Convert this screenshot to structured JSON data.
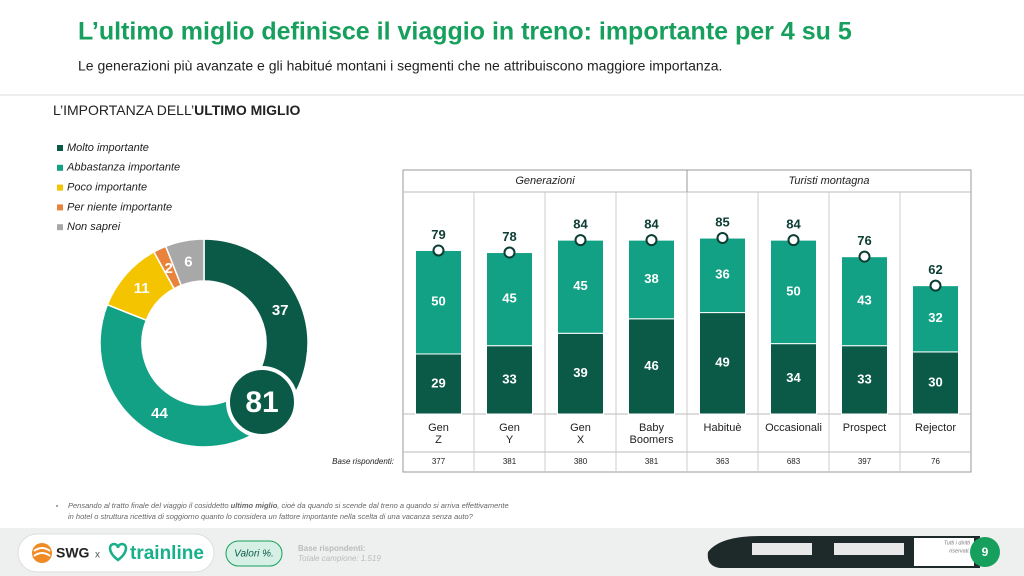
{
  "header": {
    "title": "L’ultimo miglio definisce il viaggio in treno: importante per 4 su 5",
    "subtitle": "Le generazioni più avanzate e gli habitué montani i segmenti che ne attribuiscono maggiore importanza."
  },
  "section": {
    "title_start": "L’IMPORTANZA DELL’",
    "title_bold": "ULTIMO MIGLIO"
  },
  "chart_data": [
    {
      "type": "pie",
      "categories": [
        "Molto importante",
        "Abbastanza importante",
        "Poco importante",
        "Per niente importante",
        "Non saprei"
      ],
      "values": [
        37,
        44,
        11,
        2,
        6
      ],
      "colors": [
        "#0b5a48",
        "#13a185",
        "#f5c400",
        "#e9823a",
        "#a8a8a8"
      ],
      "highlight": 81
    },
    {
      "type": "bar",
      "stacked": true,
      "groups": [
        {
          "label": "Generazioni",
          "span": 4
        },
        {
          "label": "Turisti montagna",
          "span": 4
        }
      ],
      "categories": [
        "Gen Z",
        "Gen Y",
        "Gen X",
        "Baby Boomers",
        "Habituè",
        "Occasionali",
        "Prospect",
        "Rejector"
      ],
      "series": [
        {
          "name": "Molto importante",
          "color": "#0b5a48",
          "values": [
            29,
            33,
            39,
            46,
            49,
            34,
            33,
            30
          ]
        },
        {
          "name": "Abbastanza importante",
          "color": "#13a185",
          "values": [
            50,
            45,
            45,
            38,
            36,
            50,
            43,
            32
          ]
        }
      ],
      "totals": [
        79,
        78,
        84,
        84,
        85,
        84,
        76,
        62
      ],
      "base_label": "Base rispondenti:",
      "base": [
        377,
        381,
        380,
        381,
        363,
        683,
        397,
        76
      ]
    }
  ],
  "footnote": {
    "line1_start": "Pensando al tratto finale del viaggio il cosiddetto ",
    "line1_bold": "ultimo miglio",
    "line1_end": ", cioè da quando si scende dal treno a quando si arriva effettivamente",
    "line2": "in hotel o struttura ricettiva di soggiorno quanto lo considera un fattore importante nella scelta di una vacanza senza auto?"
  },
  "footer": {
    "brand1": "SWG",
    "x": "x",
    "brand2": "trainline",
    "badge": "Valori %.",
    "base_title": "Base rispondenti:",
    "base_total": "Totale campione: 1.519",
    "rights1": "Tutti i diritti",
    "rights2": "riservati.",
    "page": "9"
  }
}
